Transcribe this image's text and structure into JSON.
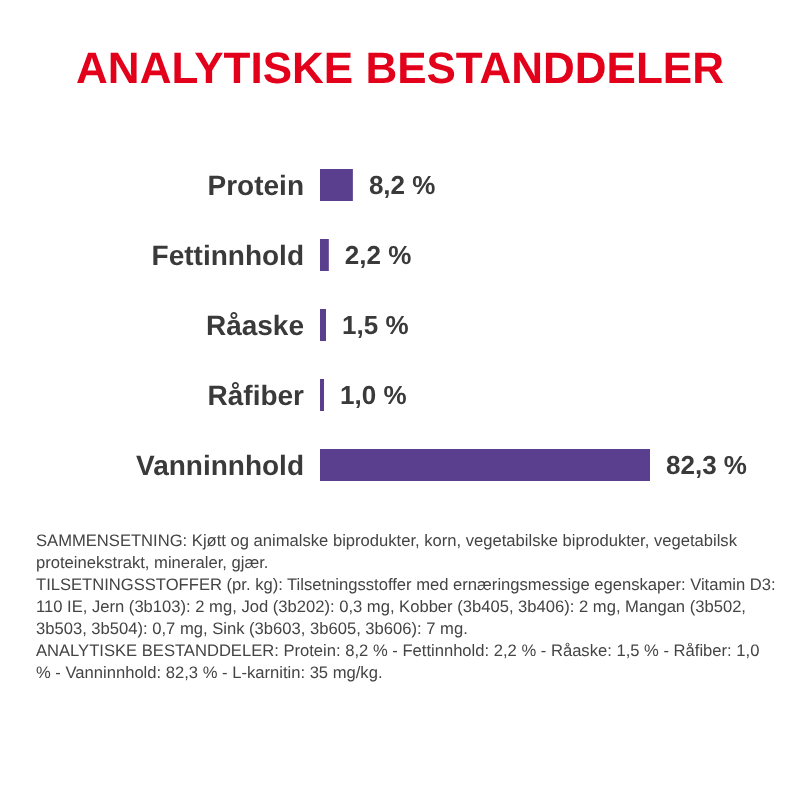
{
  "chart_data": {
    "type": "bar",
    "orientation": "horizontal",
    "title": "ANALYTISKE BESTANDDELER",
    "categories": [
      "Protein",
      "Fettinnhold",
      "Råaske",
      "Råfiber",
      "Vanninnhold"
    ],
    "values": [
      8.2,
      2.2,
      1.5,
      1.0,
      82.3
    ],
    "value_labels": [
      "8,2 %",
      "2,2 %",
      "1,5 %",
      "1,0 %",
      "82,3 %"
    ],
    "color": "#5b3f8f",
    "annotations": [
      "SAMMENSETNING: Kjøtt og animalske biprodukter, korn, vegetabilske biprodukter, vegetabilsk proteinekstrakt, mineraler, gjær.",
      "TILSETNINGSSTOFFER (pr. kg): Tilsetningsstoffer med ernæringsmessige egenskaper: Vitamin D3: 110 IE, Jern (3b103): 2 mg, Jod (3b202): 0,3 mg, Kobber (3b405, 3b406): 2 mg, Mangan (3b502, 3b503, 3b504): 0,7 mg, Sink (3b603, 3b605, 3b606): 7 mg.",
      "ANALYTISKE BESTANDDELER: Protein: 8,2 % - Fettinnhold: 2,2 % - Råaske: 1,5 % - Råfiber: 1,0 % - Vanninnhold: 82,3 % - L-karnitin: 35 mg/kg."
    ]
  }
}
